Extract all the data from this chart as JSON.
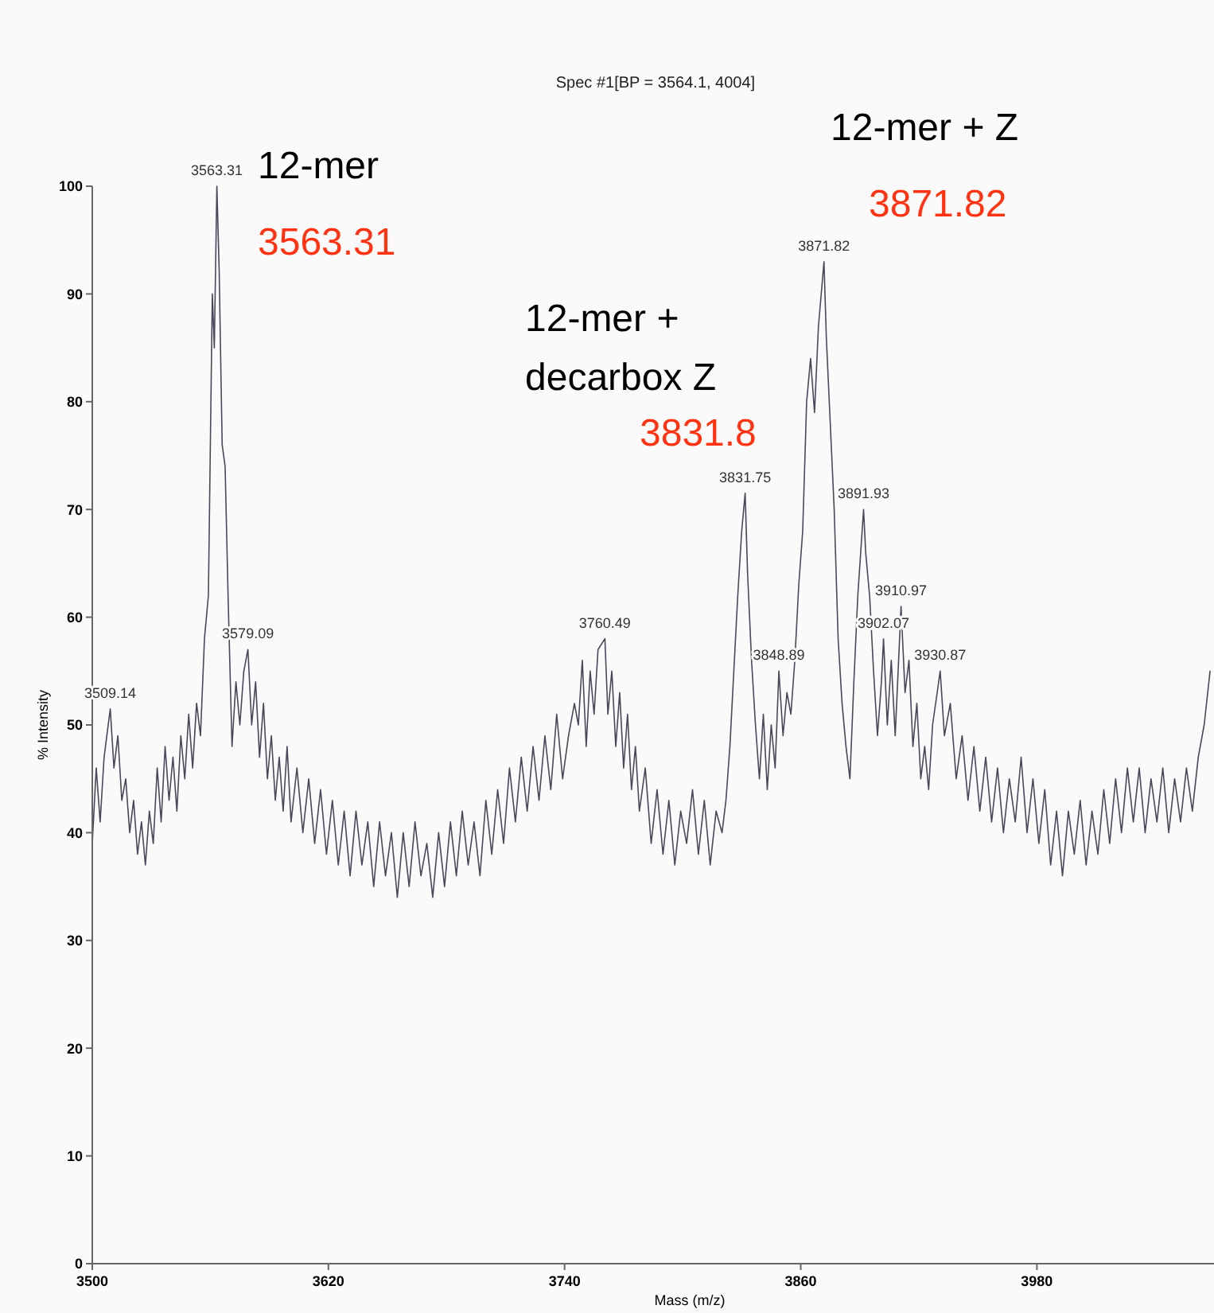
{
  "chart_data": {
    "type": "line",
    "subtitle": "Spec #1[BP = 3564.1, 4004]",
    "xlabel": "Mass (m/z)",
    "ylabel": "% Intensity",
    "xlim": [
      3500,
      4070
    ],
    "xticks": [
      3500,
      3620,
      3740,
      3860,
      3980
    ],
    "ylim": [
      0,
      100
    ],
    "yticks": [
      0,
      10,
      20,
      30,
      40,
      50,
      60,
      70,
      80,
      90,
      100
    ],
    "marker": "none",
    "line_style": "solid",
    "annotations": [
      "12-mer",
      "3563.31",
      "12-mer +",
      "decarbox Z",
      "3831.8",
      "12-mer + Z",
      "3871.82",
      {
        "text": "3509.14",
        "x": 3509.14,
        "y": 51.5
      },
      {
        "text": "3563.31",
        "x": 3563.31,
        "y": 100
      },
      {
        "text": "3579.09",
        "x": 3579.09,
        "y": 57
      },
      {
        "text": "3760.49",
        "x": 3760.49,
        "y": 58
      },
      {
        "text": "3831.75",
        "x": 3831.75,
        "y": 71.5
      },
      {
        "text": "3848.89",
        "x": 3848.89,
        "y": 55
      },
      {
        "text": "3871.82",
        "x": 3871.82,
        "y": 93
      },
      {
        "text": "3891.93",
        "x": 3891.93,
        "y": 70
      },
      {
        "text": "3902.07",
        "x": 3902.07,
        "y": 58
      },
      {
        "text": "3910.97",
        "x": 3910.97,
        "y": 61
      },
      {
        "text": "3930.87",
        "x": 3930.87,
        "y": 55
      }
    ],
    "series": [
      {
        "color": "#4a4858",
        "x": [
          3500,
          3502,
          3504,
          3506,
          3509.14,
          3511,
          3513,
          3515,
          3517,
          3519,
          3521,
          3523,
          3525,
          3527,
          3529,
          3531,
          3533,
          3535,
          3537,
          3539,
          3541,
          3543,
          3545,
          3547,
          3549,
          3551,
          3553,
          3555,
          3557,
          3559,
          3561,
          3562,
          3563.31,
          3564.5,
          3566,
          3567.5,
          3569,
          3571,
          3573,
          3575,
          3577,
          3579.09,
          3581,
          3583,
          3585,
          3587,
          3589,
          3591,
          3593,
          3595,
          3597,
          3599,
          3601,
          3604,
          3607,
          3610,
          3613,
          3616,
          3619,
          3622,
          3625,
          3628,
          3631,
          3634,
          3637,
          3640,
          3643,
          3646,
          3649,
          3652,
          3655,
          3658,
          3661,
          3664,
          3667,
          3670,
          3673,
          3676,
          3679,
          3682,
          3685,
          3688,
          3691,
          3694,
          3697,
          3700,
          3703,
          3706,
          3709,
          3712,
          3715,
          3718,
          3721,
          3724,
          3727,
          3730,
          3733,
          3736,
          3739,
          3742,
          3745,
          3747,
          3749,
          3751,
          3753,
          3755,
          3757,
          3760.49,
          3762,
          3764,
          3766,
          3768,
          3770,
          3772,
          3774,
          3776,
          3778,
          3781,
          3784,
          3787,
          3790,
          3793,
          3796,
          3799,
          3802,
          3805,
          3808,
          3811,
          3814,
          3817,
          3820,
          3822,
          3824,
          3826,
          3828,
          3830,
          3831.75,
          3833,
          3835,
          3837,
          3839,
          3841,
          3843,
          3845,
          3847,
          3848.89,
          3851,
          3853,
          3855,
          3857,
          3859,
          3861,
          3863,
          3865,
          3867,
          3869,
          3871.82,
          3873,
          3875,
          3877,
          3879,
          3881,
          3883,
          3885,
          3887,
          3889,
          3891.93,
          3893,
          3895,
          3897,
          3899,
          3901,
          3902.07,
          3904,
          3906,
          3908,
          3910.97,
          3913,
          3915,
          3917,
          3919,
          3921,
          3923,
          3925,
          3927,
          3930.87,
          3933,
          3936,
          3939,
          3942,
          3945,
          3948,
          3951,
          3954,
          3957,
          3960,
          3963,
          3966,
          3969,
          3972,
          3975,
          3978,
          3981,
          3984,
          3987,
          3990,
          3993,
          3996,
          3999,
          4002,
          4005,
          4008,
          4011,
          4014,
          4017,
          4020,
          4023,
          4026,
          4029,
          4032,
          4035,
          4038,
          4041,
          4044,
          4047,
          4050,
          4053,
          4056,
          4059,
          4062,
          4065,
          4068
        ],
        "values": [
          39,
          46,
          41,
          47,
          51.5,
          46,
          49,
          43,
          45,
          40,
          43,
          38,
          41,
          37,
          42,
          39,
          46,
          41,
          48,
          43,
          47,
          42,
          49,
          45,
          51,
          46,
          52,
          49,
          58,
          62,
          90,
          85,
          100,
          92,
          76,
          74,
          62,
          48,
          54,
          50,
          55,
          57,
          50,
          54,
          47,
          52,
          45,
          49,
          43,
          47,
          42,
          48,
          41,
          46,
          40,
          45,
          39,
          44,
          38,
          43,
          37,
          42,
          36,
          42,
          37,
          41,
          35,
          41,
          36,
          40,
          34,
          40,
          35,
          41,
          36,
          39,
          34,
          40,
          35,
          41,
          36,
          42,
          37,
          41,
          36,
          43,
          38,
          44,
          39,
          46,
          41,
          47,
          42,
          48,
          43,
          49,
          44,
          51,
          45,
          49,
          52,
          50,
          56,
          48,
          55,
          51,
          57,
          58,
          51,
          55,
          48,
          53,
          46,
          51,
          44,
          48,
          42,
          46,
          39,
          44,
          38,
          43,
          37,
          42,
          39,
          44,
          38,
          43,
          37,
          42,
          40,
          43,
          48,
          55,
          62,
          68,
          71.5,
          64,
          56,
          50,
          45,
          51,
          44,
          50,
          46,
          55,
          49,
          53,
          51,
          56,
          63,
          68,
          80,
          84,
          79,
          87,
          93,
          86,
          78,
          70,
          58,
          52,
          48,
          45,
          54,
          62,
          70,
          66,
          62,
          55,
          49,
          54,
          58,
          50,
          56,
          49,
          61,
          53,
          56,
          48,
          52,
          45,
          48,
          44,
          50,
          55,
          49,
          52,
          45,
          49,
          43,
          48,
          42,
          47,
          41,
          46,
          40,
          45,
          41,
          47,
          40,
          45,
          39,
          44,
          37,
          42,
          36,
          42,
          38,
          43,
          37,
          42,
          38,
          44,
          39,
          45,
          40,
          46,
          41,
          46,
          40,
          45,
          41,
          46,
          40,
          45,
          41,
          46,
          42,
          47,
          50,
          55
        ]
      }
    ]
  }
}
